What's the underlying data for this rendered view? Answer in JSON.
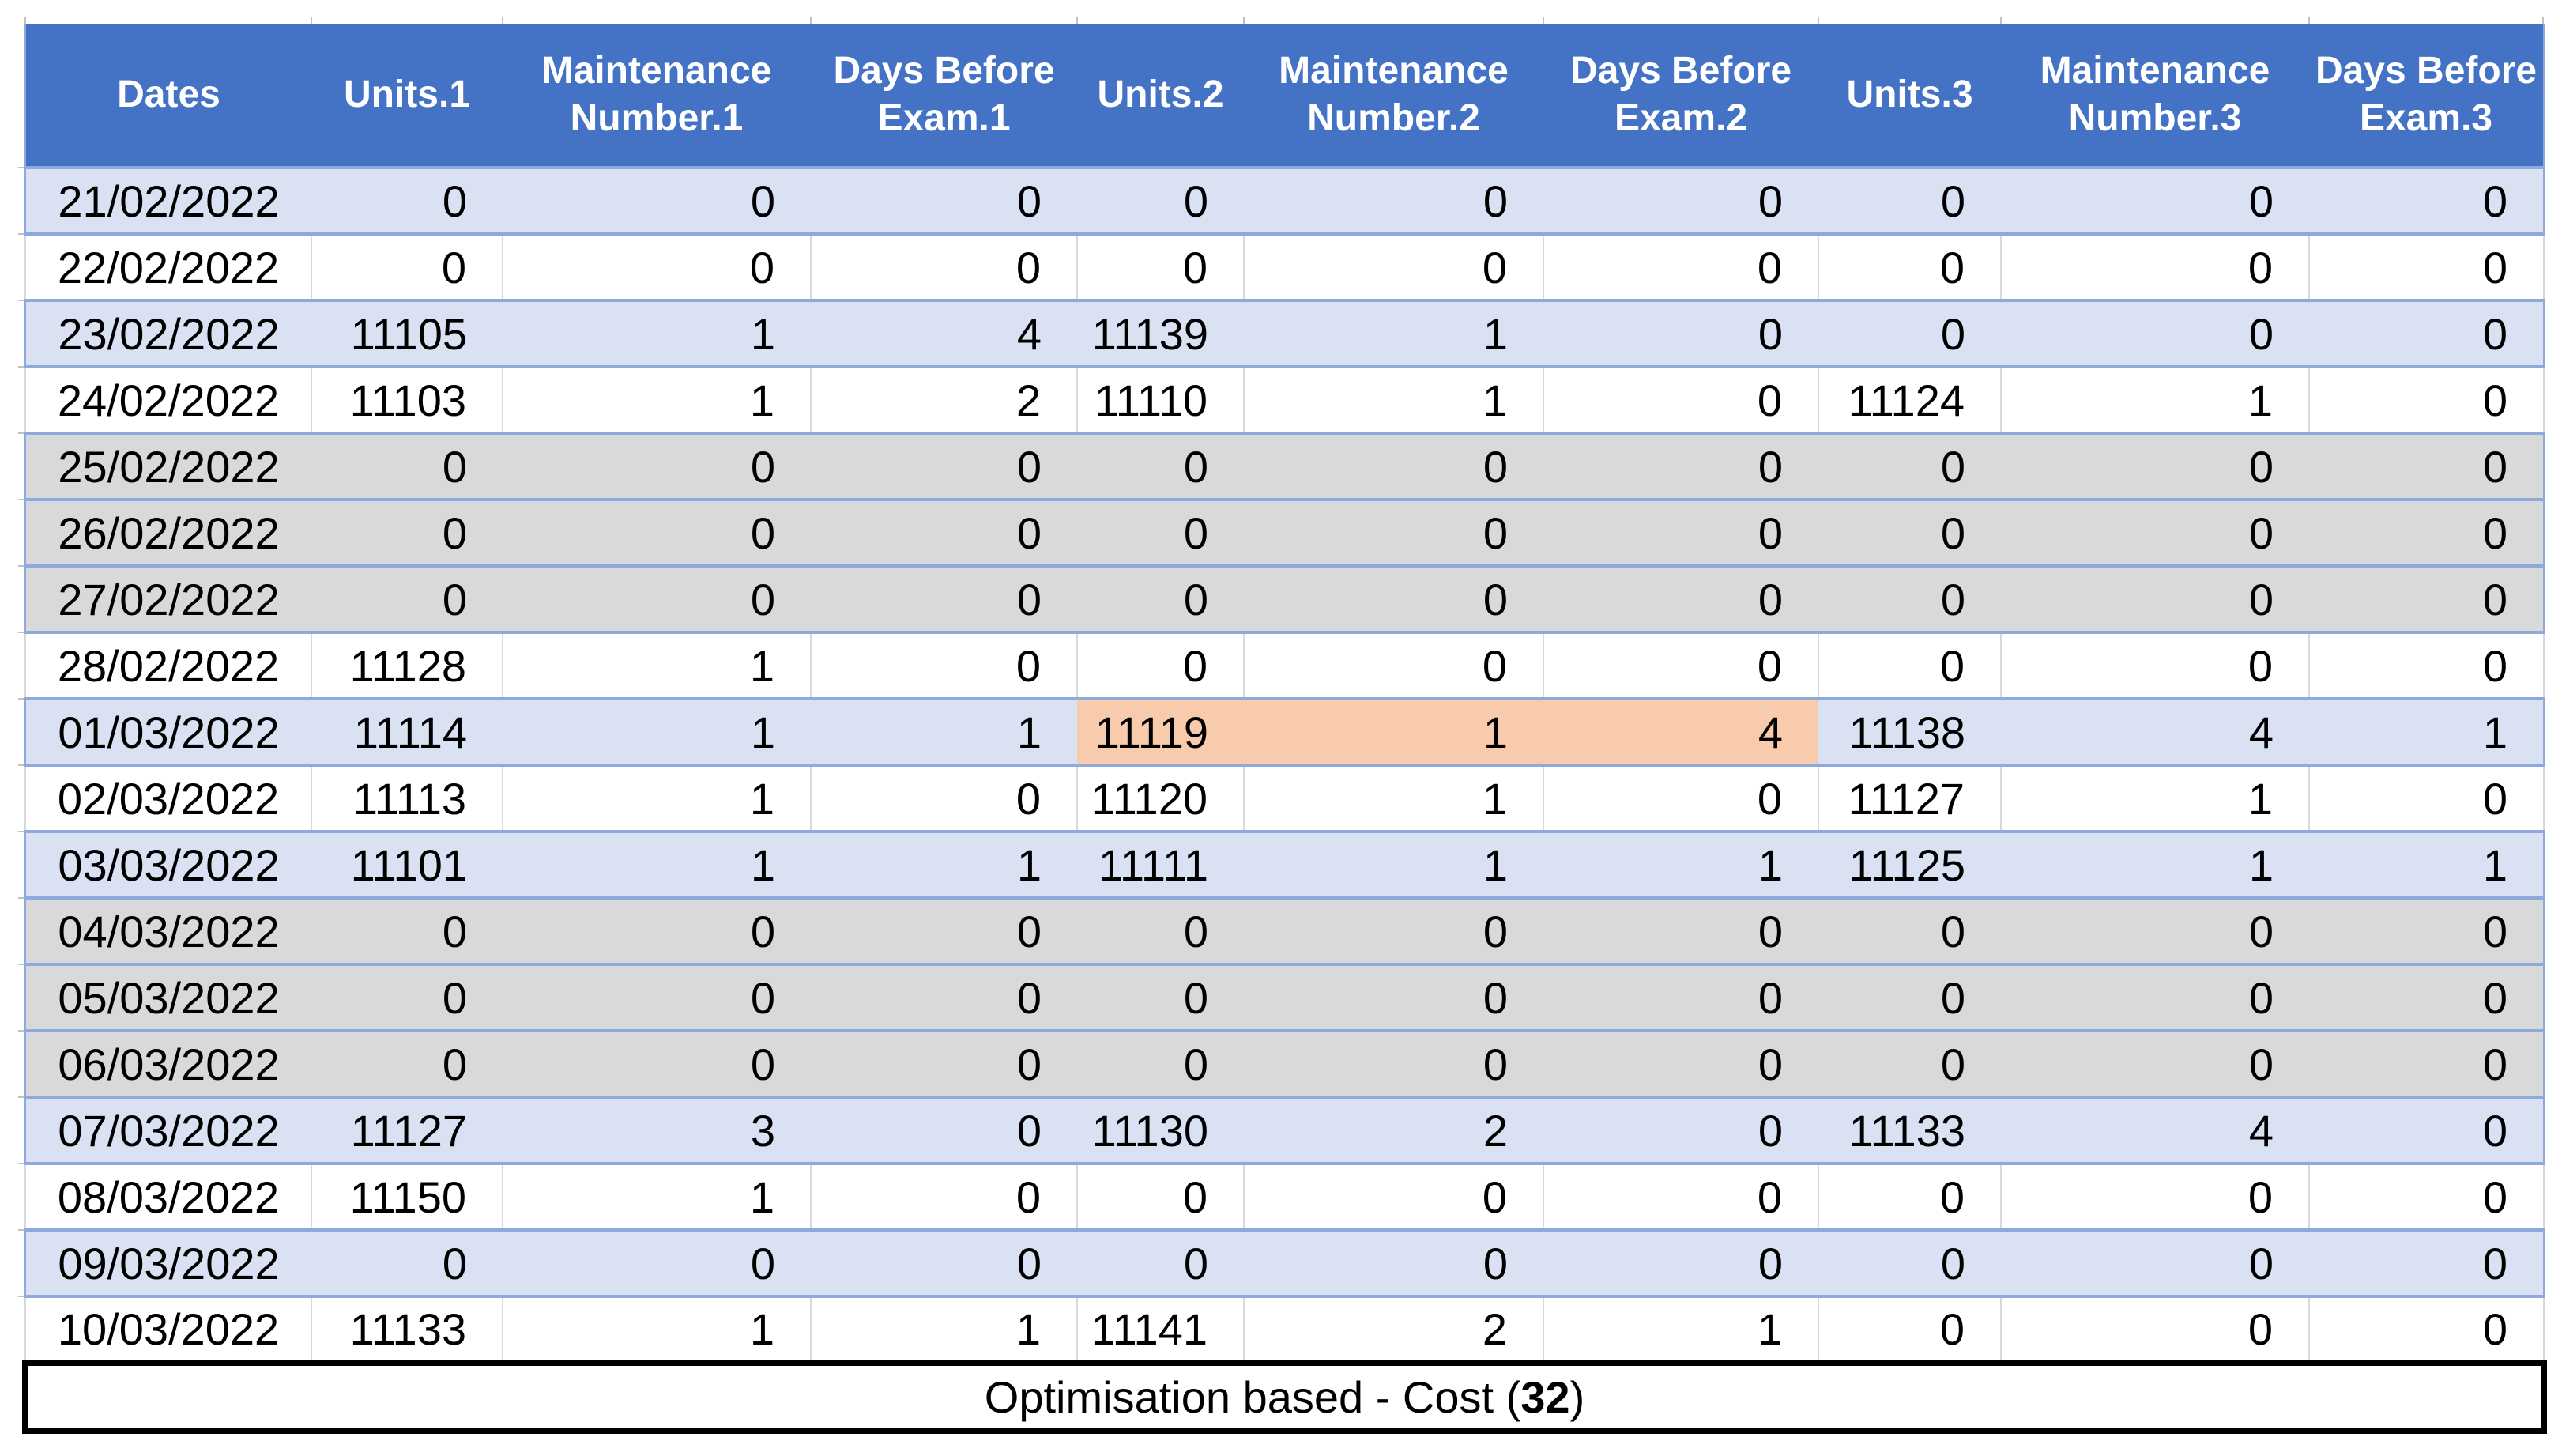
{
  "table": {
    "columns": [
      "Dates",
      "Units.1",
      "Maintenance Number.1",
      "Days Before Exam.1",
      "Units.2",
      "Maintenance Number.2",
      "Days Before Exam.2",
      "Units.3",
      "Maintenance Number.3",
      "Days Before Exam.3"
    ],
    "rows": [
      {
        "date": "21/02/2022",
        "values": [
          0,
          0,
          0,
          0,
          0,
          0,
          0,
          0,
          0
        ],
        "variant": "blue",
        "highlight": []
      },
      {
        "date": "22/02/2022",
        "values": [
          0,
          0,
          0,
          0,
          0,
          0,
          0,
          0,
          0
        ],
        "variant": "white",
        "highlight": []
      },
      {
        "date": "23/02/2022",
        "values": [
          11105,
          1,
          4,
          11139,
          1,
          0,
          0,
          0,
          0
        ],
        "variant": "blue",
        "highlight": []
      },
      {
        "date": "24/02/2022",
        "values": [
          11103,
          1,
          2,
          11110,
          1,
          0,
          11124,
          1,
          0
        ],
        "variant": "white",
        "highlight": []
      },
      {
        "date": "25/02/2022",
        "values": [
          0,
          0,
          0,
          0,
          0,
          0,
          0,
          0,
          0
        ],
        "variant": "gray",
        "highlight": []
      },
      {
        "date": "26/02/2022",
        "values": [
          0,
          0,
          0,
          0,
          0,
          0,
          0,
          0,
          0
        ],
        "variant": "gray",
        "highlight": []
      },
      {
        "date": "27/02/2022",
        "values": [
          0,
          0,
          0,
          0,
          0,
          0,
          0,
          0,
          0
        ],
        "variant": "gray",
        "highlight": []
      },
      {
        "date": "28/02/2022",
        "values": [
          11128,
          1,
          0,
          0,
          0,
          0,
          0,
          0,
          0
        ],
        "variant": "white",
        "highlight": []
      },
      {
        "date": "01/03/2022",
        "values": [
          11114,
          1,
          1,
          11119,
          1,
          4,
          11138,
          4,
          1
        ],
        "variant": "blue",
        "highlight": [
          3,
          4,
          5
        ]
      },
      {
        "date": "02/03/2022",
        "values": [
          11113,
          1,
          0,
          11120,
          1,
          0,
          11127,
          1,
          0
        ],
        "variant": "white",
        "highlight": []
      },
      {
        "date": "03/03/2022",
        "values": [
          11101,
          1,
          1,
          11111,
          1,
          1,
          11125,
          1,
          1
        ],
        "variant": "blue",
        "highlight": []
      },
      {
        "date": "04/03/2022",
        "values": [
          0,
          0,
          0,
          0,
          0,
          0,
          0,
          0,
          0
        ],
        "variant": "gray",
        "highlight": []
      },
      {
        "date": "05/03/2022",
        "values": [
          0,
          0,
          0,
          0,
          0,
          0,
          0,
          0,
          0
        ],
        "variant": "gray",
        "highlight": []
      },
      {
        "date": "06/03/2022",
        "values": [
          0,
          0,
          0,
          0,
          0,
          0,
          0,
          0,
          0
        ],
        "variant": "gray",
        "highlight": []
      },
      {
        "date": "07/03/2022",
        "values": [
          11127,
          3,
          0,
          11130,
          2,
          0,
          11133,
          4,
          0
        ],
        "variant": "blue",
        "highlight": []
      },
      {
        "date": "08/03/2022",
        "values": [
          11150,
          1,
          0,
          0,
          0,
          0,
          0,
          0,
          0
        ],
        "variant": "white",
        "highlight": []
      },
      {
        "date": "09/03/2022",
        "values": [
          0,
          0,
          0,
          0,
          0,
          0,
          0,
          0,
          0
        ],
        "variant": "blue",
        "highlight": []
      },
      {
        "date": "10/03/2022",
        "values": [
          11133,
          1,
          1,
          11141,
          2,
          1,
          0,
          0,
          0
        ],
        "variant": "white",
        "highlight": []
      }
    ]
  },
  "footer": {
    "prefix": "Optimisation based - Cost (",
    "cost": "32",
    "suffix": ")"
  },
  "colors": {
    "header_bg": "#4472C4",
    "header_text": "#FFFFFF",
    "band_blue": "#D9E1F2",
    "band_white": "#FFFFFF",
    "band_gray": "#D9D9D9",
    "highlight_orange": "#F8CBAD",
    "row_border_blue": "#8EA9DB",
    "col_border_gray": "#D9D9D9",
    "footer_border": "#000000"
  }
}
